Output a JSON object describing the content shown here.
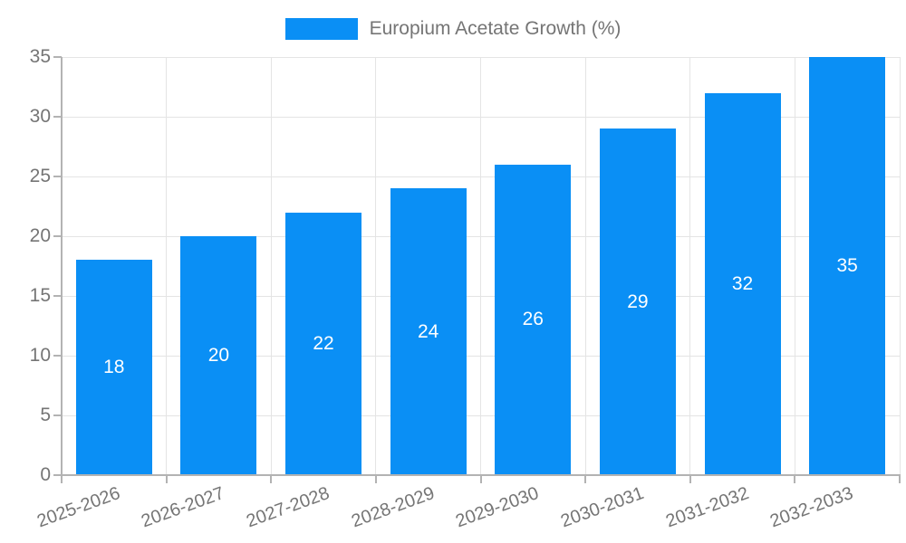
{
  "colors": {
    "bar": "#0a8ff5",
    "grid": "#e4e4e4",
    "axis": "#b3b3b3",
    "tick_text": "#757575",
    "value_text": "#ffffff",
    "background": "#ffffff"
  },
  "chart_data": {
    "type": "bar",
    "title": "",
    "legend": "Europium Acetate Growth (%)",
    "legend_position": "top-center",
    "categories": [
      "2025-2026",
      "2026-2027",
      "2027-2028",
      "2028-2029",
      "2029-2030",
      "2030-2031",
      "2031-2032",
      "2032-2033"
    ],
    "values": [
      18,
      20,
      22,
      24,
      26,
      29,
      32,
      35
    ],
    "xlabel": "",
    "ylabel": "",
    "ylim": [
      0,
      35
    ],
    "yticks": [
      0,
      5,
      10,
      15,
      20,
      25,
      30,
      35
    ],
    "grid": true,
    "value_labels": "inside-center",
    "x_tick_rotation": -20
  }
}
